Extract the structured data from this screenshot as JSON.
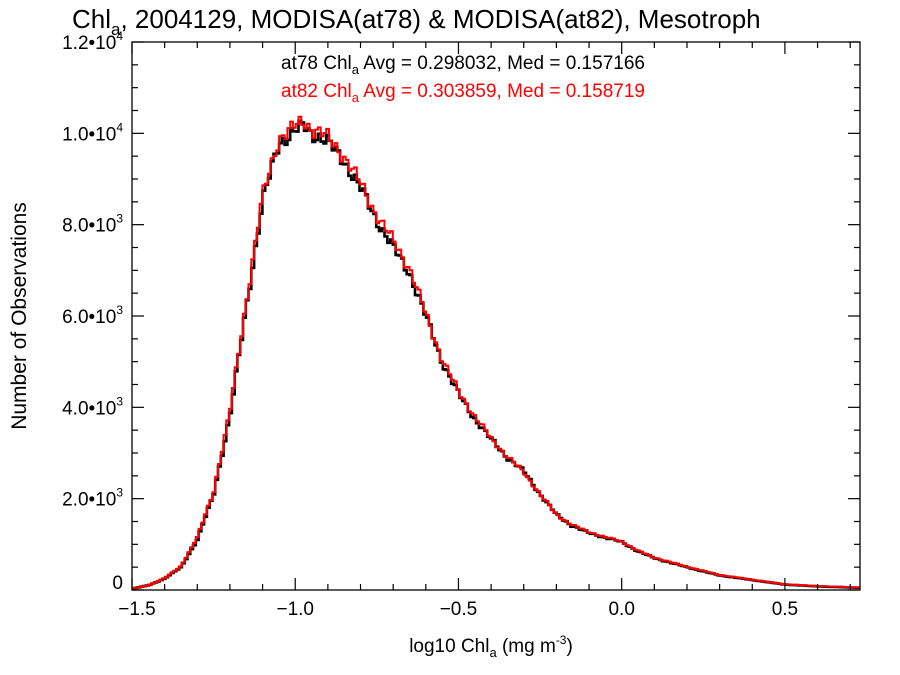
{
  "chart_data": {
    "type": "line",
    "title": {
      "main": "Chl",
      "sub": "a",
      "rest": ", 2004129, MODISA(at78) & MODISA(at82), Mesotroph"
    },
    "xlabel": {
      "main": "log10 Chl",
      "sub": "a",
      "unit": " (mg m",
      "exp": "-3",
      "close": ")"
    },
    "ylabel": "Number of Observations",
    "xlim": [
      -1.5,
      0.73
    ],
    "ylim": [
      0,
      12000
    ],
    "x_ticks": [
      {
        "value": -1.5,
        "label": "−1.5"
      },
      {
        "value": -1.0,
        "label": "−1.0"
      },
      {
        "value": -0.5,
        "label": "−0.5"
      },
      {
        "value": 0.0,
        "label": "0.0"
      },
      {
        "value": 0.5,
        "label": "0.5"
      }
    ],
    "y_ticks": [
      {
        "value": 0,
        "mant": "0",
        "exp": ""
      },
      {
        "value": 2000,
        "mant": "2.0•10",
        "exp": "3"
      },
      {
        "value": 4000,
        "mant": "4.0•10",
        "exp": "3"
      },
      {
        "value": 6000,
        "mant": "6.0•10",
        "exp": "3"
      },
      {
        "value": 8000,
        "mant": "8.0•10",
        "exp": "3"
      },
      {
        "value": 10000,
        "mant": "1.0•10",
        "exp": "4"
      },
      {
        "value": 12000,
        "mant": "1.2•10",
        "exp": "4"
      }
    ],
    "annotations": [
      {
        "pre": "at78 Chl",
        "sub": "a",
        "post": " Avg = 0.298032, Med = 0.157166",
        "color": "#000000"
      },
      {
        "pre": "at82 Chl",
        "sub": "a",
        "post": " Avg = 0.303859, Med = 0.158719",
        "color": "#ff0000"
      }
    ],
    "x": [
      -1.5,
      -1.45,
      -1.4,
      -1.35,
      -1.3,
      -1.25,
      -1.2,
      -1.15,
      -1.1,
      -1.05,
      -1.0,
      -0.97,
      -0.95,
      -0.93,
      -0.9,
      -0.85,
      -0.8,
      -0.75,
      -0.7,
      -0.65,
      -0.6,
      -0.55,
      -0.5,
      -0.45,
      -0.4,
      -0.35,
      -0.3,
      -0.25,
      -0.2,
      -0.15,
      -0.1,
      -0.05,
      0.0,
      0.05,
      0.1,
      0.2,
      0.3,
      0.4,
      0.5,
      0.6,
      0.73
    ],
    "series": [
      {
        "name": "at78",
        "color": "#000000",
        "values": [
          30,
          100,
          250,
          500,
          1100,
          2100,
          3800,
          6200,
          8500,
          9800,
          10050,
          10150,
          10000,
          9950,
          9800,
          9400,
          8800,
          8100,
          7500,
          6950,
          6000,
          5000,
          4300,
          3750,
          3300,
          2900,
          2600,
          2100,
          1650,
          1400,
          1250,
          1150,
          1050,
          850,
          700,
          500,
          320,
          220,
          120,
          80,
          50
        ]
      },
      {
        "name": "at82",
        "color": "#ff0000",
        "values": [
          30,
          100,
          260,
          520,
          1150,
          2150,
          3900,
          6300,
          8600,
          9900,
          10150,
          10250,
          10100,
          10050,
          9900,
          9500,
          8900,
          8200,
          7650,
          7050,
          6050,
          5050,
          4350,
          3800,
          3320,
          2920,
          2580,
          2100,
          1650,
          1420,
          1270,
          1160,
          1060,
          860,
          710,
          510,
          330,
          225,
          125,
          85,
          55
        ]
      }
    ],
    "grid": false,
    "axis_color": "#000000",
    "background": "#ffffff"
  }
}
